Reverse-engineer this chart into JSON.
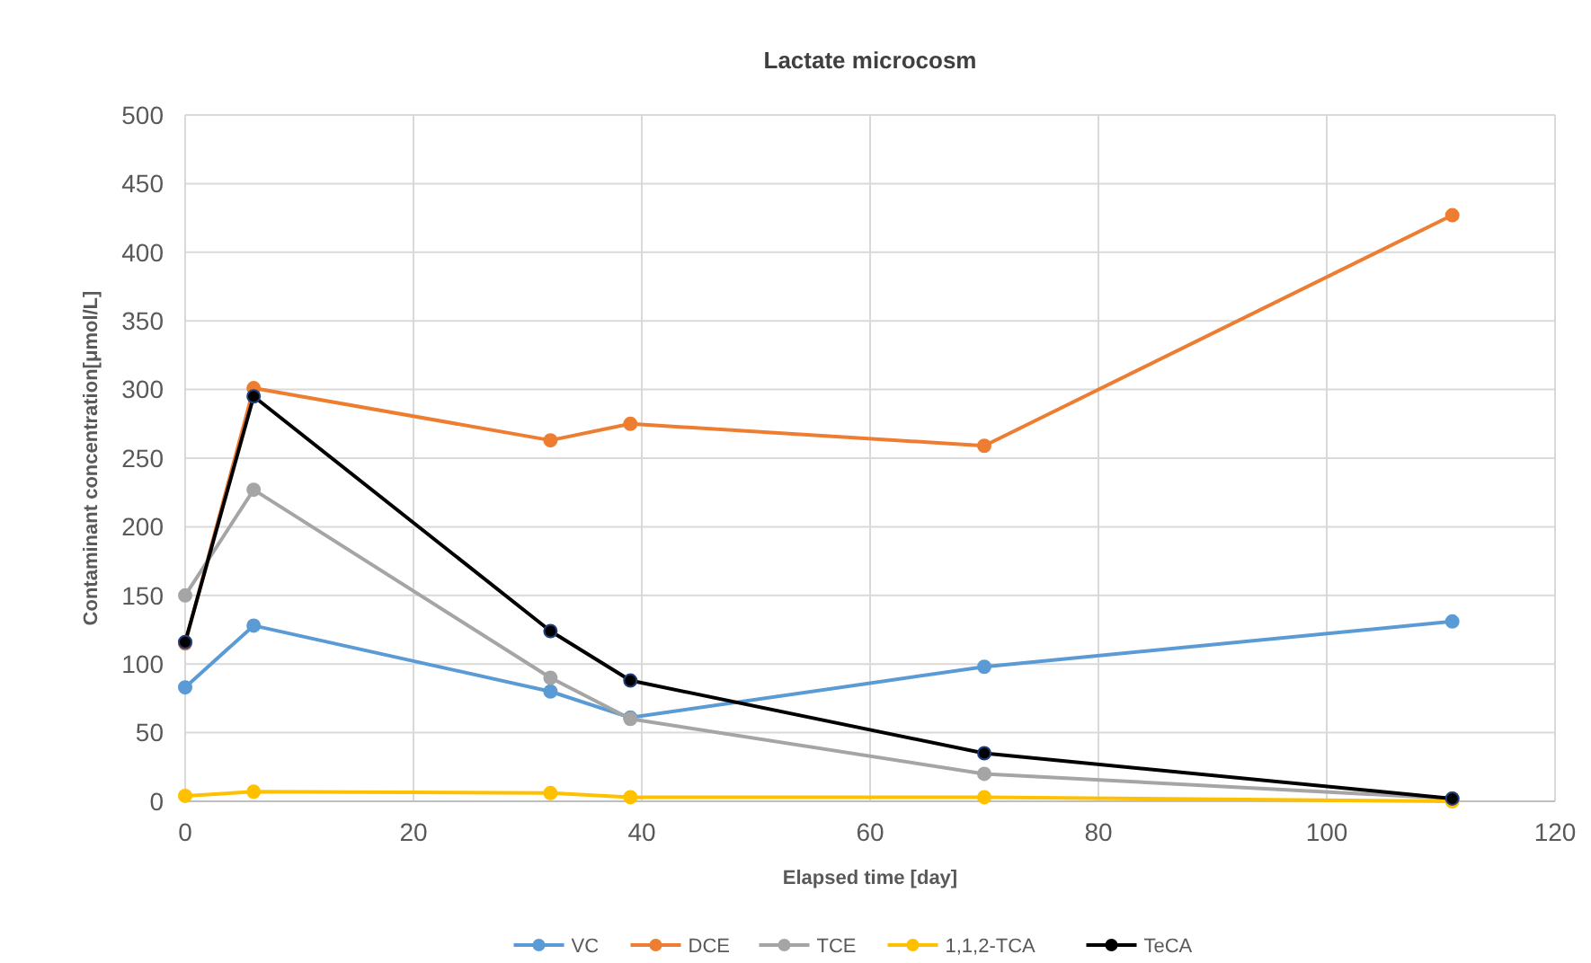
{
  "chart_data": {
    "type": "line",
    "title": "Lactate microcosm",
    "xlabel": "Elapsed time [day]",
    "ylabel": "Contaminant concentration[μmol/L]",
    "x": [
      0,
      6,
      32,
      39,
      70,
      111
    ],
    "xlim": [
      0,
      120
    ],
    "xticks": [
      0,
      20,
      40,
      60,
      80,
      100,
      120
    ],
    "ylim": [
      0,
      500
    ],
    "yticks": [
      0,
      50,
      100,
      150,
      200,
      250,
      300,
      350,
      400,
      450,
      500
    ],
    "grid": true,
    "legend": "bottom",
    "marker": "circle",
    "series": [
      {
        "name": "VC",
        "color": "#5b9bd5",
        "values": [
          83,
          128,
          80,
          61,
          98,
          131
        ]
      },
      {
        "name": "DCE",
        "color": "#ed7d31",
        "values": [
          115,
          301,
          263,
          275,
          259,
          427
        ]
      },
      {
        "name": "TCE",
        "color": "#a5a5a5",
        "values": [
          150,
          227,
          90,
          60,
          20,
          2
        ]
      },
      {
        "name": "1,1,2-TCA",
        "color": "#ffc000",
        "values": [
          4,
          7,
          6,
          3,
          3,
          0
        ]
      },
      {
        "name": "TeCA",
        "color": "#000000",
        "values": [
          116,
          295,
          124,
          88,
          35,
          2
        ]
      }
    ]
  }
}
